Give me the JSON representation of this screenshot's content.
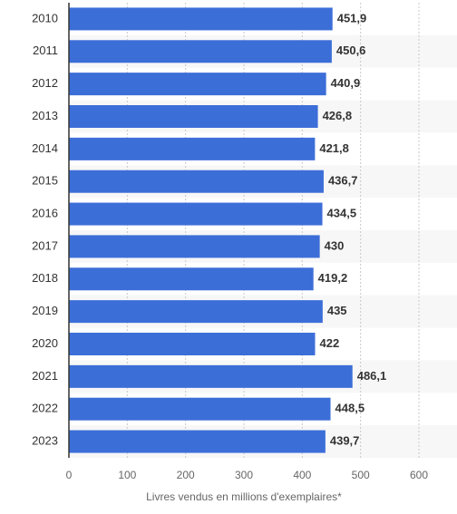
{
  "chart_data": {
    "type": "bar",
    "orientation": "horizontal",
    "categories": [
      "2010",
      "2011",
      "2012",
      "2013",
      "2014",
      "2015",
      "2016",
      "2017",
      "2018",
      "2019",
      "2020",
      "2021",
      "2022",
      "2023"
    ],
    "values": [
      451.9,
      450.6,
      440.9,
      426.8,
      421.8,
      436.7,
      434.5,
      430,
      419.2,
      435,
      422,
      486.1,
      448.5,
      439.7
    ],
    "value_labels": [
      "451,9",
      "450,6",
      "440,9",
      "426,8",
      "421,8",
      "436,7",
      "434,5",
      "430",
      "419,2",
      "435",
      "422",
      "486,1",
      "448,5",
      "439,7"
    ],
    "xlabel": "Livres vendus en millions d'exemplaires*",
    "ylabel": "",
    "title": "",
    "xlim": [
      0,
      600
    ],
    "xticks": [
      0,
      100,
      200,
      300,
      400,
      500,
      600
    ],
    "grid": true,
    "bar_color": "#3c6ed8"
  }
}
